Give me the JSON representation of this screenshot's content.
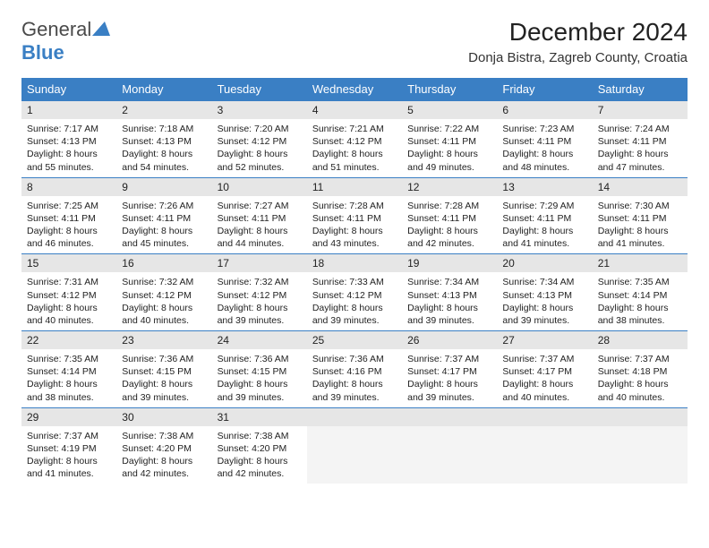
{
  "logo": {
    "text_part1": "General",
    "text_part2": "Blue"
  },
  "title": "December 2024",
  "location": "Donja Bistra, Zagreb County, Croatia",
  "colors": {
    "header_bg": "#3a7fc4",
    "daynum_bg": "#e6e6e6",
    "text": "#222222",
    "border": "#3a7fc4"
  },
  "weekdays": [
    "Sunday",
    "Monday",
    "Tuesday",
    "Wednesday",
    "Thursday",
    "Friday",
    "Saturday"
  ],
  "weeks": [
    [
      {
        "n": "1",
        "sunrise": "Sunrise: 7:17 AM",
        "sunset": "Sunset: 4:13 PM",
        "day1": "Daylight: 8 hours",
        "day2": "and 55 minutes."
      },
      {
        "n": "2",
        "sunrise": "Sunrise: 7:18 AM",
        "sunset": "Sunset: 4:13 PM",
        "day1": "Daylight: 8 hours",
        "day2": "and 54 minutes."
      },
      {
        "n": "3",
        "sunrise": "Sunrise: 7:20 AM",
        "sunset": "Sunset: 4:12 PM",
        "day1": "Daylight: 8 hours",
        "day2": "and 52 minutes."
      },
      {
        "n": "4",
        "sunrise": "Sunrise: 7:21 AM",
        "sunset": "Sunset: 4:12 PM",
        "day1": "Daylight: 8 hours",
        "day2": "and 51 minutes."
      },
      {
        "n": "5",
        "sunrise": "Sunrise: 7:22 AM",
        "sunset": "Sunset: 4:11 PM",
        "day1": "Daylight: 8 hours",
        "day2": "and 49 minutes."
      },
      {
        "n": "6",
        "sunrise": "Sunrise: 7:23 AM",
        "sunset": "Sunset: 4:11 PM",
        "day1": "Daylight: 8 hours",
        "day2": "and 48 minutes."
      },
      {
        "n": "7",
        "sunrise": "Sunrise: 7:24 AM",
        "sunset": "Sunset: 4:11 PM",
        "day1": "Daylight: 8 hours",
        "day2": "and 47 minutes."
      }
    ],
    [
      {
        "n": "8",
        "sunrise": "Sunrise: 7:25 AM",
        "sunset": "Sunset: 4:11 PM",
        "day1": "Daylight: 8 hours",
        "day2": "and 46 minutes."
      },
      {
        "n": "9",
        "sunrise": "Sunrise: 7:26 AM",
        "sunset": "Sunset: 4:11 PM",
        "day1": "Daylight: 8 hours",
        "day2": "and 45 minutes."
      },
      {
        "n": "10",
        "sunrise": "Sunrise: 7:27 AM",
        "sunset": "Sunset: 4:11 PM",
        "day1": "Daylight: 8 hours",
        "day2": "and 44 minutes."
      },
      {
        "n": "11",
        "sunrise": "Sunrise: 7:28 AM",
        "sunset": "Sunset: 4:11 PM",
        "day1": "Daylight: 8 hours",
        "day2": "and 43 minutes."
      },
      {
        "n": "12",
        "sunrise": "Sunrise: 7:28 AM",
        "sunset": "Sunset: 4:11 PM",
        "day1": "Daylight: 8 hours",
        "day2": "and 42 minutes."
      },
      {
        "n": "13",
        "sunrise": "Sunrise: 7:29 AM",
        "sunset": "Sunset: 4:11 PM",
        "day1": "Daylight: 8 hours",
        "day2": "and 41 minutes."
      },
      {
        "n": "14",
        "sunrise": "Sunrise: 7:30 AM",
        "sunset": "Sunset: 4:11 PM",
        "day1": "Daylight: 8 hours",
        "day2": "and 41 minutes."
      }
    ],
    [
      {
        "n": "15",
        "sunrise": "Sunrise: 7:31 AM",
        "sunset": "Sunset: 4:12 PM",
        "day1": "Daylight: 8 hours",
        "day2": "and 40 minutes."
      },
      {
        "n": "16",
        "sunrise": "Sunrise: 7:32 AM",
        "sunset": "Sunset: 4:12 PM",
        "day1": "Daylight: 8 hours",
        "day2": "and 40 minutes."
      },
      {
        "n": "17",
        "sunrise": "Sunrise: 7:32 AM",
        "sunset": "Sunset: 4:12 PM",
        "day1": "Daylight: 8 hours",
        "day2": "and 39 minutes."
      },
      {
        "n": "18",
        "sunrise": "Sunrise: 7:33 AM",
        "sunset": "Sunset: 4:12 PM",
        "day1": "Daylight: 8 hours",
        "day2": "and 39 minutes."
      },
      {
        "n": "19",
        "sunrise": "Sunrise: 7:34 AM",
        "sunset": "Sunset: 4:13 PM",
        "day1": "Daylight: 8 hours",
        "day2": "and 39 minutes."
      },
      {
        "n": "20",
        "sunrise": "Sunrise: 7:34 AM",
        "sunset": "Sunset: 4:13 PM",
        "day1": "Daylight: 8 hours",
        "day2": "and 39 minutes."
      },
      {
        "n": "21",
        "sunrise": "Sunrise: 7:35 AM",
        "sunset": "Sunset: 4:14 PM",
        "day1": "Daylight: 8 hours",
        "day2": "and 38 minutes."
      }
    ],
    [
      {
        "n": "22",
        "sunrise": "Sunrise: 7:35 AM",
        "sunset": "Sunset: 4:14 PM",
        "day1": "Daylight: 8 hours",
        "day2": "and 38 minutes."
      },
      {
        "n": "23",
        "sunrise": "Sunrise: 7:36 AM",
        "sunset": "Sunset: 4:15 PM",
        "day1": "Daylight: 8 hours",
        "day2": "and 39 minutes."
      },
      {
        "n": "24",
        "sunrise": "Sunrise: 7:36 AM",
        "sunset": "Sunset: 4:15 PM",
        "day1": "Daylight: 8 hours",
        "day2": "and 39 minutes."
      },
      {
        "n": "25",
        "sunrise": "Sunrise: 7:36 AM",
        "sunset": "Sunset: 4:16 PM",
        "day1": "Daylight: 8 hours",
        "day2": "and 39 minutes."
      },
      {
        "n": "26",
        "sunrise": "Sunrise: 7:37 AM",
        "sunset": "Sunset: 4:17 PM",
        "day1": "Daylight: 8 hours",
        "day2": "and 39 minutes."
      },
      {
        "n": "27",
        "sunrise": "Sunrise: 7:37 AM",
        "sunset": "Sunset: 4:17 PM",
        "day1": "Daylight: 8 hours",
        "day2": "and 40 minutes."
      },
      {
        "n": "28",
        "sunrise": "Sunrise: 7:37 AM",
        "sunset": "Sunset: 4:18 PM",
        "day1": "Daylight: 8 hours",
        "day2": "and 40 minutes."
      }
    ],
    [
      {
        "n": "29",
        "sunrise": "Sunrise: 7:37 AM",
        "sunset": "Sunset: 4:19 PM",
        "day1": "Daylight: 8 hours",
        "day2": "and 41 minutes."
      },
      {
        "n": "30",
        "sunrise": "Sunrise: 7:38 AM",
        "sunset": "Sunset: 4:20 PM",
        "day1": "Daylight: 8 hours",
        "day2": "and 42 minutes."
      },
      {
        "n": "31",
        "sunrise": "Sunrise: 7:38 AM",
        "sunset": "Sunset: 4:20 PM",
        "day1": "Daylight: 8 hours",
        "day2": "and 42 minutes."
      },
      null,
      null,
      null,
      null
    ]
  ]
}
